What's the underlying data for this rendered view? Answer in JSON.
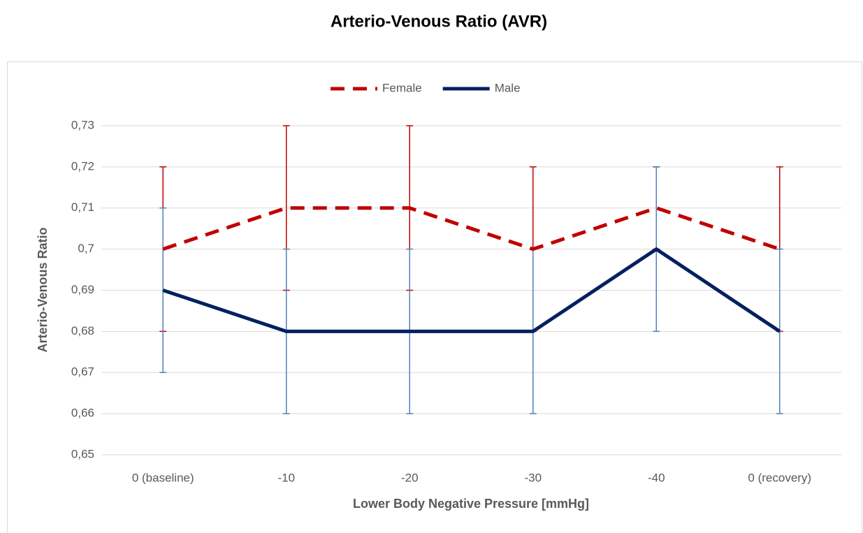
{
  "chart_data": {
    "type": "line",
    "title": "Arterio-Venous Ratio (AVR)",
    "x_label": "Lower Body Negative Pressure [mmHg]",
    "y_label": "Arterio-Venous Ratio",
    "categories": [
      "0 (baseline)",
      "-10",
      "-20",
      "-30",
      "-40",
      "0 (recovery)"
    ],
    "series": [
      {
        "name": "Female",
        "color": "#c00000",
        "error_color": "#c00000",
        "dash": true,
        "values": [
          0.7,
          0.71,
          0.71,
          0.7,
          0.71,
          0.7
        ],
        "errors": [
          0.02,
          0.02,
          0.02,
          0.02,
          0.01,
          0.02
        ]
      },
      {
        "name": "Male",
        "color": "#002060",
        "error_color": "#4f81bd",
        "dash": false,
        "values": [
          0.69,
          0.68,
          0.68,
          0.68,
          0.7,
          0.68
        ],
        "errors": [
          0.02,
          0.02,
          0.02,
          0.02,
          0.02,
          0.02
        ]
      }
    ],
    "ylim": [
      0.65,
      0.73
    ],
    "yticks": [
      {
        "value": 0.65,
        "label": "0,65"
      },
      {
        "value": 0.66,
        "label": "0,66"
      },
      {
        "value": 0.67,
        "label": "0,67"
      },
      {
        "value": 0.68,
        "label": "0,68"
      },
      {
        "value": 0.69,
        "label": "0,69"
      },
      {
        "value": 0.7,
        "label": "0,7"
      },
      {
        "value": 0.71,
        "label": "0,71"
      },
      {
        "value": 0.72,
        "label": "0,72"
      },
      {
        "value": 0.73,
        "label": "0,73"
      }
    ],
    "grid": true,
    "legend": "top"
  }
}
